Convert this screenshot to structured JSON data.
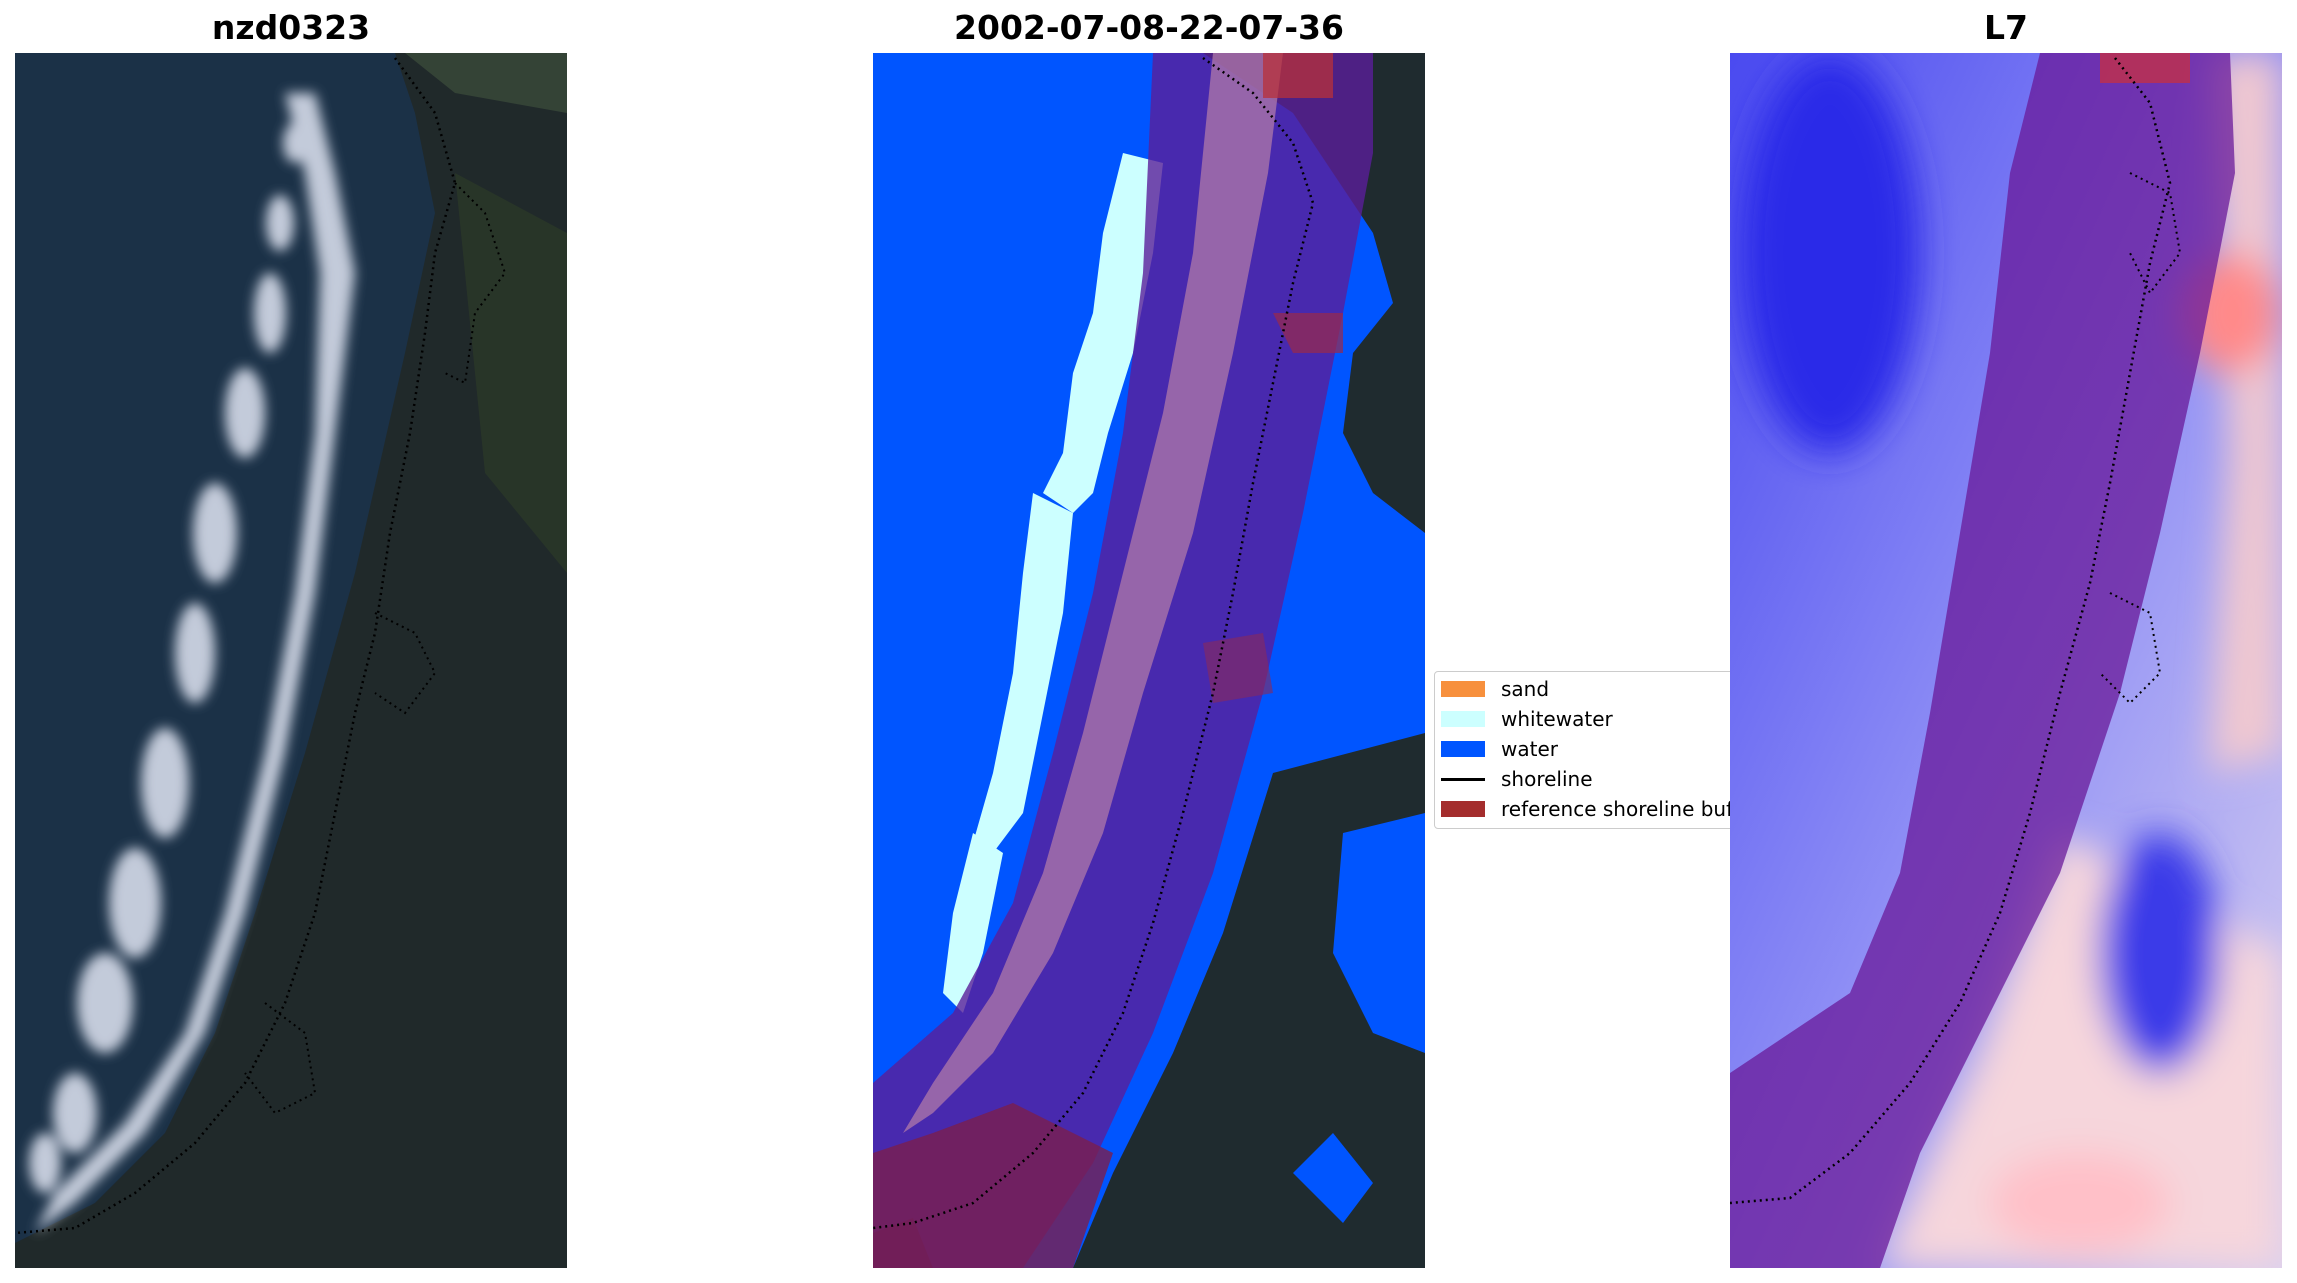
{
  "panels": [
    {
      "title": "nzd0323"
    },
    {
      "title": "2002-07-08-22-07-36"
    },
    {
      "title": "L7"
    }
  ],
  "legend": {
    "items": [
      {
        "label": "sand",
        "color": "#f7903d",
        "kind": "patch"
      },
      {
        "label": "whitewater",
        "color": "#ccffff",
        "kind": "patch"
      },
      {
        "label": "water",
        "color": "#0055ff",
        "kind": "patch"
      },
      {
        "label": "shoreline",
        "color": "#000000",
        "kind": "line"
      },
      {
        "label": "reference shoreline buffer",
        "color": "#a42d2d",
        "kind": "patch"
      }
    ]
  },
  "colors": {
    "ocean_dark": "#19304a",
    "land_dark": "#1e2a2e",
    "water_class": "#0055ff",
    "whitewater_class": "#ccffff",
    "buffer_overlay": "#7a1e6e",
    "index_blue": "#3a3aff",
    "index_red": "#ff6060"
  }
}
